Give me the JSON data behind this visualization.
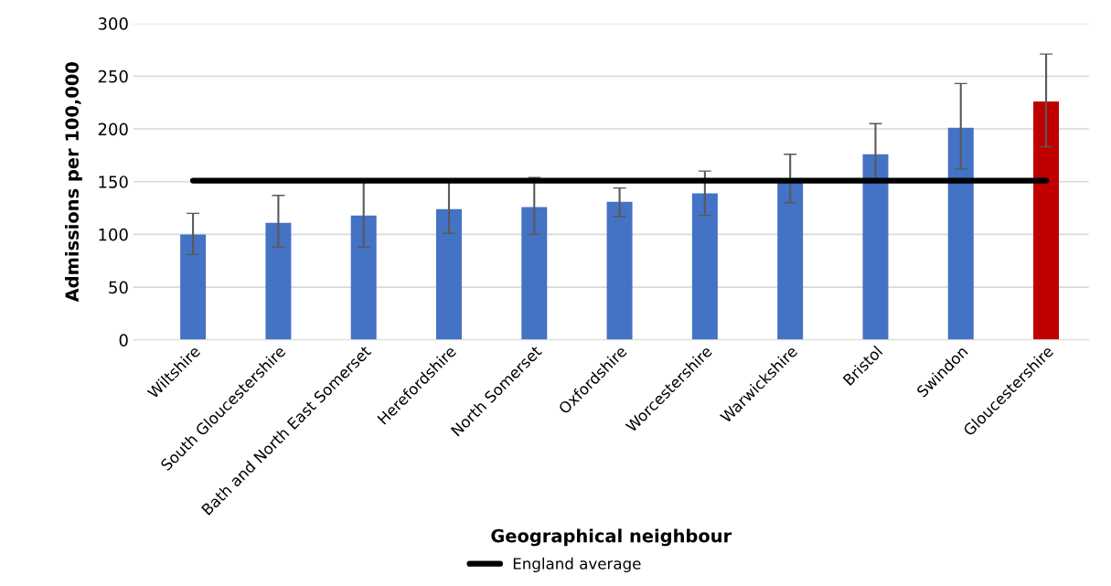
{
  "chart_data": {
    "type": "bar",
    "xlabel": "Geographical neighbour",
    "ylabel": "Admissions per 100,000",
    "categories": [
      "Wiltshire",
      "South Gloucestershire",
      "Bath and North East Somerset",
      "Herefordshire",
      "North Somerset",
      "Oxfordshire",
      "Worcestershire",
      "Warwickshire",
      "Bristol",
      "Swindon",
      "Gloucestershire"
    ],
    "series": [
      {
        "colors": [
          "#4472c4",
          "#4472c4",
          "#4472c4",
          "#4472c4",
          "#4472c4",
          "#4472c4",
          "#4472c4",
          "#4472c4",
          "#4472c4",
          "#4472c4",
          "#c00000"
        ],
        "values": [
          100,
          111,
          118,
          124,
          126,
          131,
          139,
          149,
          176,
          201,
          226
        ],
        "errors": [
          [
            81,
            120
          ],
          [
            88,
            137
          ],
          [
            88,
            150
          ],
          [
            101,
            151
          ],
          [
            100,
            154
          ],
          [
            117,
            144
          ],
          [
            118,
            160
          ],
          [
            130,
            176
          ],
          [
            150,
            205
          ],
          [
            162,
            243
          ],
          [
            183,
            271
          ]
        ]
      },
      {
        "type": "line",
        "name": "England average",
        "color": "#000000",
        "values": [
          151,
          151,
          151,
          151,
          151,
          151,
          151,
          151,
          151,
          151,
          151
        ]
      }
    ],
    "ylim": [
      0,
      300
    ],
    "yticks": [
      0,
      50,
      100,
      150,
      200,
      250,
      300
    ],
    "grid": "y",
    "legend": "bottom"
  }
}
